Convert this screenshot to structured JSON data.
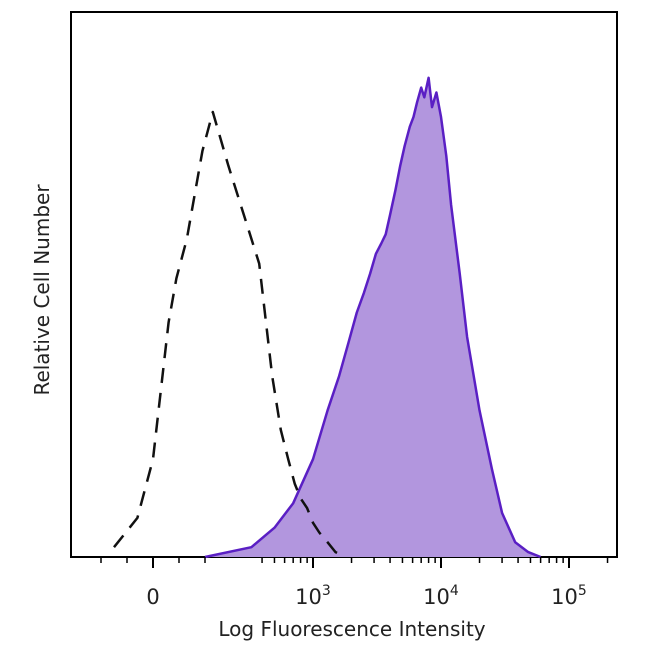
{
  "chart_data": {
    "type": "area",
    "title": "",
    "xlabel": "Log Fluorescence Intensity",
    "ylabel": "Relative Cell Number",
    "x_scale": "biexponential (log above ~10^2.5)",
    "xlim": [
      -300,
      150000
    ],
    "ylim": [
      0,
      1
    ],
    "x_ticks": [
      {
        "value": 0,
        "base": "0",
        "exp": ""
      },
      {
        "value": 1000,
        "base": "10",
        "exp": "3"
      },
      {
        "value": 10000,
        "base": "10",
        "exp": "4"
      },
      {
        "value": 100000,
        "base": "10",
        "exp": "5"
      }
    ],
    "grid": false,
    "legend": "none",
    "colors": {
      "stained_fill": "#b296de",
      "stained_line": "#5a1fc4",
      "control_line": "#111111",
      "axis": "#000000"
    },
    "series": [
      {
        "style": "dashed-line",
        "x": [
          -150,
          -60,
          0,
          30,
          60,
          90,
          130,
          160,
          190,
          230,
          290,
          380,
          480,
          560,
          640,
          720,
          800,
          900,
          1000,
          1120,
          1300,
          1500,
          1800
        ],
        "values": [
          0.02,
          0.08,
          0.2,
          0.34,
          0.48,
          0.57,
          0.65,
          0.74,
          0.83,
          0.91,
          0.8,
          0.6,
          0.37,
          0.26,
          0.2,
          0.15,
          0.12,
          0.1,
          0.07,
          0.05,
          0.03,
          0.01,
          0.0
        ]
      },
      {
        "style": "filled-area",
        "x": [
          200,
          330,
          500,
          700,
          1000,
          1300,
          1600,
          1900,
          2200,
          2500,
          2800,
          3100,
          3400,
          3700,
          4000,
          4400,
          4800,
          5200,
          5700,
          6100,
          6500,
          7000,
          7400,
          8000,
          8500,
          9200,
          10000,
          11000,
          12000,
          14000,
          16000,
          20000,
          25000,
          30000,
          38000,
          48000,
          60000
        ],
        "values": [
          0.0,
          0.02,
          0.06,
          0.11,
          0.2,
          0.3,
          0.37,
          0.44,
          0.5,
          0.54,
          0.58,
          0.62,
          0.64,
          0.66,
          0.7,
          0.75,
          0.8,
          0.84,
          0.88,
          0.9,
          0.93,
          0.96,
          0.94,
          0.98,
          0.92,
          0.95,
          0.9,
          0.82,
          0.72,
          0.58,
          0.45,
          0.3,
          0.18,
          0.09,
          0.03,
          0.01,
          0.0
        ]
      }
    ]
  }
}
